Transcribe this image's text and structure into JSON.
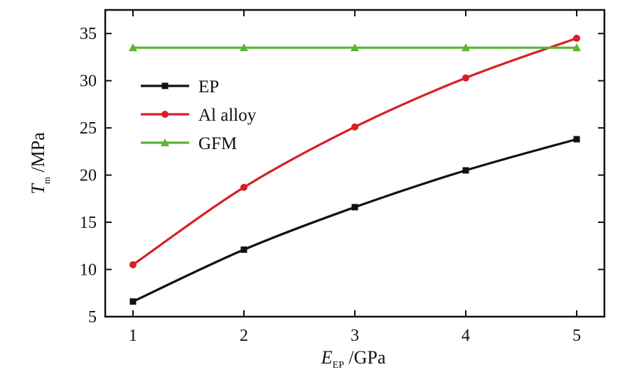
{
  "chart_data": {
    "type": "line",
    "x": [
      1,
      2,
      3,
      4,
      5
    ],
    "xlim": [
      0.75,
      5.25
    ],
    "ylim": [
      5,
      37.5
    ],
    "xticks": [
      1,
      2,
      3,
      4,
      5
    ],
    "yticks": [
      5,
      10,
      15,
      20,
      25,
      30,
      35
    ],
    "xlabel": {
      "main": "E",
      "sub": "EP",
      "unit": " /GPa"
    },
    "ylabel": {
      "main": "T",
      "sub": "m",
      "unit": "  /MPa"
    },
    "legend_position": "upper-left",
    "grid": false,
    "series": [
      {
        "name": "EP",
        "color": "#111111",
        "marker": "square",
        "values": [
          6.6,
          12.1,
          16.6,
          20.5,
          23.8
        ]
      },
      {
        "name": "Al alloy",
        "color": "#d91f26",
        "marker": "circle",
        "values": [
          10.5,
          18.7,
          25.1,
          30.3,
          34.5
        ]
      },
      {
        "name": "GFM",
        "color": "#5cb531",
        "marker": "triangle",
        "values": [
          33.5,
          33.5,
          33.5,
          33.5,
          33.5
        ]
      }
    ]
  }
}
